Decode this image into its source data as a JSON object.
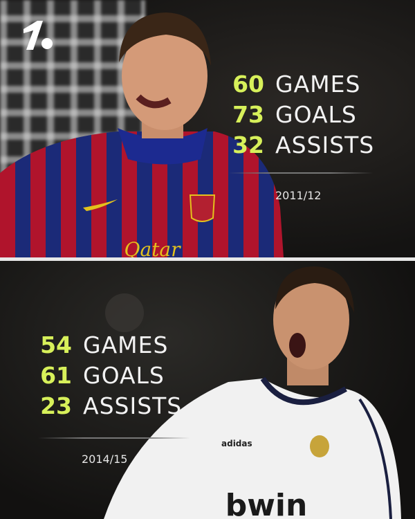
{
  "brand": {
    "logo": "onefootball-logo"
  },
  "colors": {
    "number": "#d7f05a",
    "label": "#f2f2f2",
    "divider": "#e8e8e8"
  },
  "top": {
    "stats": [
      {
        "value": "60",
        "label": "GAMES"
      },
      {
        "value": "73",
        "label": "GOALS"
      },
      {
        "value": "32",
        "label": "ASSISTS"
      }
    ],
    "season": "2011/12",
    "shirt_sponsor": "Qatar"
  },
  "bottom": {
    "stats": [
      {
        "value": "54",
        "label": "GAMES"
      },
      {
        "value": "61",
        "label": "GOALS"
      },
      {
        "value": "23",
        "label": "ASSISTS"
      }
    ],
    "season": "2014/15",
    "shirt_sponsor": "bwin",
    "shirt_brand": "adidas"
  }
}
